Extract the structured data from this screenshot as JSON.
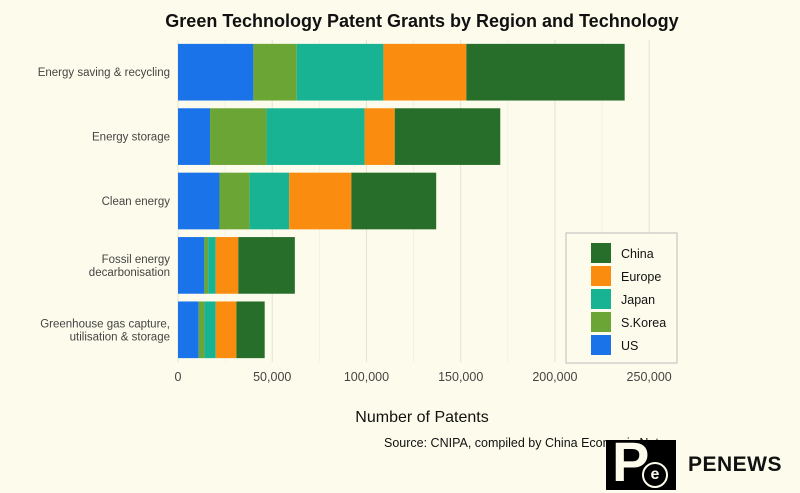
{
  "chart_data": {
    "type": "bar",
    "orientation": "horizontal",
    "stacked": true,
    "title": "Green Technology Patent Grants by Region and Technology",
    "xlabel": "Number of Patents",
    "ylabel": "",
    "xlim": [
      0,
      260000
    ],
    "xticks": [
      0,
      50000,
      100000,
      150000,
      200000,
      250000
    ],
    "xtick_labels": [
      "0",
      "50,000",
      "100,000",
      "150,000",
      "200,000",
      "250,000"
    ],
    "grid": true,
    "legend_position": "bottom-right",
    "categories": [
      [
        "Energy saving & recycling"
      ],
      [
        "Energy storage"
      ],
      [
        "Clean energy"
      ],
      [
        "Fossil energy",
        "decarbonisation"
      ],
      [
        "Greenhouse gas capture,",
        "utilisation & storage"
      ]
    ],
    "series": [
      {
        "name": "US",
        "color": "#1a73e8",
        "values": [
          40000,
          17000,
          22000,
          14000,
          11000
        ]
      },
      {
        "name": "S.Korea",
        "color": "#6aa535",
        "values": [
          23000,
          30000,
          16000,
          2000,
          3000
        ]
      },
      {
        "name": "Japan",
        "color": "#18b393",
        "values": [
          46000,
          52000,
          21000,
          4000,
          6000
        ]
      },
      {
        "name": "Europe",
        "color": "#fa8c0f",
        "values": [
          44000,
          16000,
          33000,
          12000,
          11000
        ]
      },
      {
        "name": "China",
        "color": "#276e2b",
        "values": [
          84000,
          56000,
          45000,
          30000,
          15000
        ]
      }
    ],
    "legend_order": [
      "China",
      "Europe",
      "Japan",
      "S.Korea",
      "US"
    ]
  },
  "source": "Source: CNIPA, compiled by China Economic Net",
  "logo": {
    "text": "PENEWS",
    "mark_letter": "P",
    "mark_sub": "e"
  }
}
